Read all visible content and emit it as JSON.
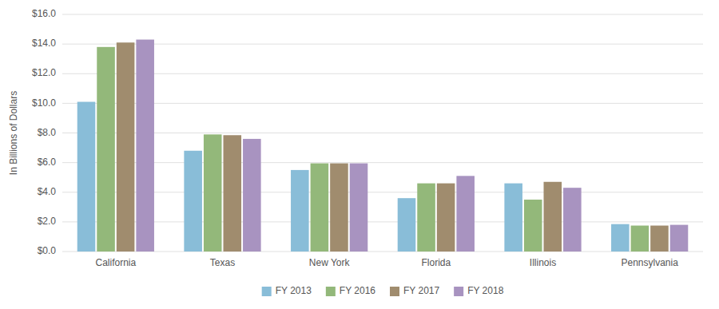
{
  "chart_data": {
    "type": "bar",
    "ylabel": "In Billions of Dollars",
    "categories": [
      "California",
      "Texas",
      "New York",
      "Florida",
      "Illinois",
      "Pennsylvania"
    ],
    "series": [
      {
        "name": "FY 2013",
        "color": "#89bdd8",
        "values": [
          10.1,
          6.8,
          5.5,
          3.6,
          4.6,
          1.85
        ]
      },
      {
        "name": "FY 2016",
        "color": "#93b87a",
        "values": [
          13.8,
          7.9,
          5.95,
          4.6,
          3.5,
          1.75
        ]
      },
      {
        "name": "FY 2017",
        "color": "#a08c6e",
        "values": [
          14.1,
          7.85,
          5.95,
          4.6,
          4.7,
          1.75
        ]
      },
      {
        "name": "FY 2018",
        "color": "#a893c0",
        "values": [
          14.3,
          7.6,
          5.95,
          5.1,
          4.3,
          1.8
        ]
      }
    ],
    "ylim": [
      0,
      16
    ],
    "yticks": [
      {
        "value": 0,
        "label": "$0.0"
      },
      {
        "value": 2,
        "label": "$2.0"
      },
      {
        "value": 4,
        "label": "$4.0"
      },
      {
        "value": 6,
        "label": "$6.0"
      },
      {
        "value": 8,
        "label": "$8.0"
      },
      {
        "value": 10,
        "label": "$10.0"
      },
      {
        "value": 12,
        "label": "$12.0"
      },
      {
        "value": 14,
        "label": "$14.0"
      },
      {
        "value": 16,
        "label": "$16.0"
      }
    ],
    "grid": true,
    "legend": "bottom"
  }
}
